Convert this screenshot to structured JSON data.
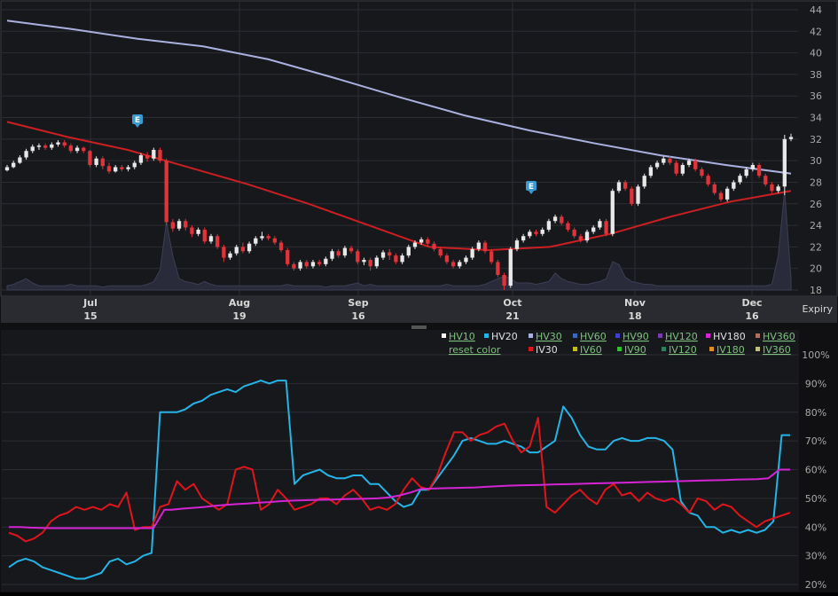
{
  "colors": {
    "background": "#17181c",
    "grid": "#2c2d33",
    "up_candle": "#e8e8e8",
    "down_candle": "#e0333a",
    "ma_line": "#aab0e0",
    "ma_short": "#cc1f22",
    "volume_fill": "#2a2b3a",
    "hv20": "#26b4e6",
    "iv30": "#e0151b",
    "hv180": "#d424d4",
    "legend_link": "#7fc07f",
    "tick_text": "#a8a8a8",
    "xaxis_bg": "#2a2b30"
  },
  "earnings_marker": {
    "label": "E"
  },
  "price_axis": {
    "ticks": [
      "44",
      "42",
      "40",
      "38",
      "36",
      "34",
      "32",
      "30",
      "28",
      "26",
      "24",
      "22",
      "20",
      "18"
    ]
  },
  "date_axis": {
    "months": [
      {
        "month": "Jul",
        "day": "15"
      },
      {
        "month": "Aug",
        "day": "19"
      },
      {
        "month": "Sep",
        "day": "16"
      },
      {
        "month": "Oct",
        "day": "21"
      },
      {
        "month": "Nov",
        "day": "18"
      },
      {
        "month": "Dec",
        "day": "16"
      }
    ],
    "expiry_label": "Expiry"
  },
  "legend": {
    "row1": [
      {
        "label": "HV10",
        "swatch": "#ffffff",
        "link": true
      },
      {
        "label": "HV20",
        "swatch": "#26b4e6",
        "link": false
      },
      {
        "label": "HV30",
        "swatch": "#aab0e0",
        "link": true
      },
      {
        "label": "HV60",
        "swatch": "#3a6ac0",
        "link": true
      },
      {
        "label": "HV90",
        "swatch": "#4040d0",
        "link": true
      },
      {
        "label": "HV120",
        "swatch": "#7a3ab0",
        "link": true
      },
      {
        "label": "HV180",
        "swatch": "#d424d4",
        "link": false
      },
      {
        "label": "HV360",
        "swatch": "#b07060",
        "link": true
      }
    ],
    "row2": [
      {
        "label": "reset color",
        "swatch": null,
        "link": true
      },
      {
        "label": "IV30",
        "swatch": "#e0151b",
        "link": false
      },
      {
        "label": "IV60",
        "swatch": "#c0c020",
        "link": true
      },
      {
        "label": "IV90",
        "swatch": "#30c030",
        "link": true
      },
      {
        "label": "IV120",
        "swatch": "#2a8060",
        "link": true
      },
      {
        "label": "IV180",
        "swatch": "#e09020",
        "link": true
      },
      {
        "label": "IV360",
        "swatch": "#c0c080",
        "link": true
      }
    ]
  },
  "vol_axis": {
    "ticks": [
      "100%",
      "90%",
      "80%",
      "70%",
      "60%",
      "50%",
      "40%",
      "30%",
      "20%"
    ]
  },
  "chart_data": [
    {
      "type": "candlestick",
      "ylim": [
        18,
        44
      ],
      "n": 124,
      "candles": [
        [
          29.1,
          29.4,
          29.0,
          29.6
        ],
        [
          29.4,
          29.8,
          29.3,
          30.0
        ],
        [
          29.8,
          30.3,
          29.7,
          30.5
        ],
        [
          30.3,
          30.9,
          30.1,
          31.1
        ],
        [
          30.9,
          31.3,
          30.7,
          31.5
        ],
        [
          31.3,
          31.4,
          31.0,
          31.6
        ],
        [
          31.4,
          31.2,
          31.0,
          31.6
        ],
        [
          31.2,
          31.5,
          31.0,
          31.7
        ],
        [
          31.5,
          31.7,
          31.3,
          31.9
        ],
        [
          31.7,
          31.4,
          31.2,
          31.9
        ],
        [
          31.4,
          30.9,
          30.7,
          31.6
        ],
        [
          30.9,
          31.2,
          30.7,
          31.4
        ],
        [
          31.2,
          30.9,
          30.7,
          31.3
        ],
        [
          30.9,
          29.6,
          29.4,
          31.0
        ],
        [
          29.6,
          30.2,
          29.4,
          30.4
        ],
        [
          30.2,
          29.5,
          29.2,
          30.4
        ],
        [
          29.5,
          29.0,
          28.8,
          29.8
        ],
        [
          29.0,
          29.4,
          28.9,
          29.6
        ],
        [
          29.4,
          29.2,
          29.0,
          29.6
        ],
        [
          29.2,
          29.4,
          29.0,
          29.6
        ],
        [
          29.4,
          29.8,
          29.2,
          30.0
        ],
        [
          29.8,
          30.5,
          29.6,
          30.7
        ],
        [
          30.5,
          30.2,
          29.9,
          30.8
        ],
        [
          30.2,
          31.0,
          30.0,
          31.2
        ],
        [
          31.0,
          30.0,
          29.8,
          31.2
        ],
        [
          30.0,
          24.3,
          24.0,
          30.2
        ],
        [
          24.3,
          23.7,
          23.4,
          24.6
        ],
        [
          23.7,
          24.4,
          23.5,
          24.6
        ],
        [
          24.4,
          23.8,
          23.5,
          24.6
        ],
        [
          23.8,
          23.2,
          22.9,
          24.0
        ],
        [
          23.2,
          23.6,
          23.0,
          23.8
        ],
        [
          23.6,
          22.5,
          22.3,
          23.8
        ],
        [
          22.5,
          23.0,
          22.3,
          23.2
        ],
        [
          23.0,
          22.0,
          21.8,
          23.2
        ],
        [
          22.0,
          21.0,
          20.6,
          22.2
        ],
        [
          21.0,
          21.4,
          20.8,
          21.6
        ],
        [
          21.4,
          22.0,
          21.2,
          22.2
        ],
        [
          22.0,
          21.6,
          21.4,
          22.4
        ],
        [
          21.6,
          22.3,
          21.4,
          22.5
        ],
        [
          22.3,
          22.8,
          22.1,
          23.0
        ],
        [
          22.8,
          23.0,
          22.6,
          23.4
        ],
        [
          23.0,
          22.8,
          22.6,
          23.2
        ],
        [
          22.8,
          22.4,
          22.2,
          23.0
        ],
        [
          22.4,
          21.7,
          21.5,
          22.6
        ],
        [
          21.7,
          20.4,
          20.2,
          21.9
        ],
        [
          20.4,
          20.0,
          19.8,
          20.6
        ],
        [
          20.0,
          20.6,
          19.8,
          20.8
        ],
        [
          20.6,
          20.2,
          20.0,
          20.8
        ],
        [
          20.2,
          20.6,
          20.0,
          20.8
        ],
        [
          20.6,
          20.4,
          20.2,
          20.8
        ],
        [
          20.4,
          20.9,
          20.2,
          21.1
        ],
        [
          20.9,
          21.6,
          20.7,
          21.8
        ],
        [
          21.6,
          21.2,
          21.0,
          21.8
        ],
        [
          21.2,
          21.9,
          21.0,
          22.1
        ],
        [
          21.9,
          21.6,
          21.4,
          22.1
        ],
        [
          21.6,
          20.6,
          20.4,
          21.8
        ],
        [
          20.6,
          20.8,
          20.3,
          21.0
        ],
        [
          20.8,
          20.2,
          19.8,
          21.0
        ],
        [
          20.2,
          21.0,
          20.0,
          21.2
        ],
        [
          21.0,
          21.5,
          20.8,
          21.7
        ],
        [
          21.5,
          21.2,
          20.8,
          21.8
        ],
        [
          21.2,
          20.6,
          20.4,
          21.4
        ],
        [
          20.6,
          21.2,
          20.4,
          21.4
        ],
        [
          21.2,
          22.0,
          21.0,
          22.2
        ],
        [
          22.0,
          22.4,
          21.8,
          22.6
        ],
        [
          22.4,
          22.7,
          22.2,
          22.9
        ],
        [
          22.7,
          22.3,
          22.0,
          22.9
        ],
        [
          22.3,
          21.8,
          21.6,
          22.5
        ],
        [
          21.8,
          21.2,
          21.0,
          22.0
        ],
        [
          21.2,
          20.6,
          20.4,
          21.4
        ],
        [
          20.6,
          20.2,
          20.0,
          20.8
        ],
        [
          20.2,
          20.6,
          20.0,
          20.8
        ],
        [
          20.6,
          21.0,
          20.4,
          21.2
        ],
        [
          21.0,
          21.8,
          20.8,
          22.0
        ],
        [
          21.8,
          22.4,
          21.6,
          22.6
        ],
        [
          22.4,
          21.6,
          21.4,
          22.6
        ],
        [
          21.6,
          20.6,
          20.4,
          21.8
        ],
        [
          20.6,
          19.4,
          19.2,
          20.8
        ],
        [
          19.4,
          18.4,
          18.0,
          19.6
        ],
        [
          18.4,
          21.8,
          18.2,
          22.0
        ],
        [
          21.8,
          22.6,
          21.6,
          22.8
        ],
        [
          22.6,
          23.0,
          22.4,
          23.2
        ],
        [
          23.0,
          23.4,
          22.8,
          23.6
        ],
        [
          23.4,
          23.2,
          23.0,
          23.6
        ],
        [
          23.2,
          23.6,
          23.0,
          23.8
        ],
        [
          23.6,
          24.4,
          23.4,
          24.6
        ],
        [
          24.4,
          24.8,
          24.2,
          25.0
        ],
        [
          24.8,
          24.2,
          24.0,
          25.0
        ],
        [
          24.2,
          23.6,
          23.4,
          24.4
        ],
        [
          23.6,
          23.0,
          22.8,
          23.8
        ],
        [
          23.0,
          22.6,
          22.4,
          23.2
        ],
        [
          22.6,
          23.4,
          22.4,
          23.6
        ],
        [
          23.4,
          23.8,
          23.2,
          24.0
        ],
        [
          23.8,
          24.4,
          23.6,
          24.6
        ],
        [
          24.4,
          23.2,
          23.0,
          24.6
        ],
        [
          23.2,
          27.2,
          23.0,
          27.4
        ],
        [
          27.2,
          28.0,
          27.0,
          28.2
        ],
        [
          28.0,
          27.4,
          27.2,
          28.2
        ],
        [
          27.4,
          26.0,
          25.8,
          27.6
        ],
        [
          26.0,
          27.6,
          25.8,
          27.8
        ],
        [
          27.6,
          28.6,
          27.4,
          28.8
        ],
        [
          28.6,
          29.4,
          28.4,
          29.6
        ],
        [
          29.4,
          29.8,
          29.2,
          30.0
        ],
        [
          29.8,
          30.2,
          29.6,
          30.4
        ],
        [
          30.2,
          29.8,
          29.6,
          30.4
        ],
        [
          29.8,
          28.8,
          28.6,
          30.0
        ],
        [
          28.8,
          29.6,
          28.6,
          29.8
        ],
        [
          29.6,
          30.0,
          29.4,
          30.2
        ],
        [
          30.0,
          29.2,
          29.0,
          30.2
        ],
        [
          29.2,
          28.6,
          28.4,
          29.4
        ],
        [
          28.6,
          27.8,
          27.6,
          28.8
        ],
        [
          27.8,
          27.0,
          26.8,
          28.0
        ],
        [
          27.0,
          26.4,
          26.2,
          27.2
        ],
        [
          26.4,
          27.4,
          26.2,
          27.6
        ],
        [
          27.4,
          28.0,
          27.2,
          28.2
        ],
        [
          28.0,
          28.6,
          27.8,
          28.8
        ],
        [
          28.6,
          29.2,
          28.4,
          29.4
        ],
        [
          29.2,
          29.6,
          29.0,
          29.8
        ],
        [
          29.6,
          28.6,
          28.4,
          29.8
        ],
        [
          28.6,
          27.8,
          27.6,
          28.8
        ],
        [
          27.8,
          27.2,
          27.0,
          28.0
        ],
        [
          27.2,
          27.6,
          27.0,
          27.8
        ],
        [
          27.6,
          32.0,
          26.8,
          32.4
        ],
        [
          32.0,
          32.2,
          31.8,
          32.5
        ]
      ],
      "ma_long": [
        43,
        42.2,
        41.3,
        40.6,
        39.4,
        37.7,
        35.9,
        34.2,
        32.8,
        31.6,
        30.5,
        29.6,
        28.8
      ],
      "ma_short": [
        33.6,
        32.2,
        31.0,
        29.4,
        27.8,
        26.0,
        24.0,
        22.0,
        21.7,
        22.0,
        23.2,
        24.8,
        26.2,
        27.2
      ]
    },
    {
      "type": "line",
      "ylim": [
        20,
        100
      ],
      "ylabel_unit": "%",
      "series": [
        {
          "name": "HV20",
          "values": [
            26,
            28,
            29,
            28,
            26,
            25,
            24,
            23,
            22,
            22,
            23,
            24,
            28,
            29,
            27,
            28,
            30,
            31,
            80,
            80,
            80,
            81,
            83,
            84,
            86,
            87,
            88,
            87,
            89,
            90,
            91,
            90,
            91,
            91,
            55,
            58,
            59,
            60,
            58,
            57,
            57,
            58,
            58,
            55,
            55,
            52,
            49,
            47,
            48,
            53,
            53,
            57,
            61,
            65,
            70,
            71,
            70,
            69,
            69,
            70,
            69,
            68,
            66,
            66,
            68,
            70,
            82,
            78,
            72,
            68,
            67,
            67,
            70,
            71,
            70,
            70,
            71,
            71,
            70,
            67,
            49,
            45,
            44,
            40,
            40,
            38,
            39,
            38,
            39,
            38,
            39,
            42,
            72,
            72
          ]
        },
        {
          "name": "IV30",
          "values": [
            38,
            37,
            35,
            36,
            38,
            42,
            44,
            45,
            47,
            46,
            47,
            46,
            48,
            47,
            52,
            39,
            40,
            40,
            47,
            48,
            56,
            53,
            55,
            50,
            48,
            46,
            48,
            60,
            61,
            60,
            46,
            48,
            53,
            50,
            46,
            47,
            48,
            50,
            50,
            48,
            51,
            53,
            50,
            46,
            47,
            46,
            48,
            53,
            57,
            54,
            53,
            58,
            66,
            73,
            73,
            70,
            72,
            73,
            75,
            76,
            70,
            66,
            68,
            78,
            47,
            45,
            48,
            51,
            53,
            50,
            48,
            53,
            55,
            51,
            52,
            49,
            52,
            50,
            49,
            50,
            48,
            45,
            50,
            49,
            46,
            48,
            47,
            44,
            42,
            40,
            42,
            43,
            44,
            45
          ]
        },
        {
          "name": "HV180",
          "values": [
            40,
            40,
            39.8,
            39.7,
            39.6,
            39.6,
            39.6,
            39.6,
            39.6,
            39.6,
            39.6,
            39.6,
            39.6,
            39.6,
            46,
            46,
            46.4,
            46.7,
            47,
            47.4,
            47.7,
            48,
            48.2,
            48.5,
            48.7,
            49,
            49.2,
            49.3,
            49.4,
            49.5,
            49.6,
            49.7,
            49.8,
            49.9,
            50,
            50.3,
            51,
            52,
            53.3,
            53.4,
            53.5,
            53.6,
            53.7,
            53.8,
            54,
            54.2,
            54.4,
            54.5,
            54.6,
            54.7,
            54.8,
            54.9,
            55,
            55.1,
            55.2,
            55.3,
            55.4,
            55.5,
            55.6,
            55.7,
            55.8,
            55.9,
            56,
            56.1,
            56.2,
            56.3,
            56.4,
            56.5,
            56.6,
            56.7,
            57,
            60,
            60
          ]
        }
      ],
      "hv180_x_indices": [
        0,
        3,
        6,
        9,
        12,
        15,
        18,
        21,
        24,
        27,
        30,
        33,
        36,
        40,
        43,
        45,
        48,
        51,
        54,
        57,
        60,
        63,
        66,
        69,
        72,
        75,
        78,
        81,
        84,
        87,
        90,
        93,
        96,
        99,
        102,
        105,
        108,
        111,
        114,
        117,
        120,
        123,
        126,
        129,
        132,
        135,
        138,
        141,
        144,
        147,
        150,
        153,
        156,
        159,
        162,
        165,
        168,
        171,
        174,
        177,
        180,
        183,
        186,
        189,
        192,
        195,
        198,
        201,
        204,
        207,
        210,
        213,
        216
      ]
    }
  ]
}
